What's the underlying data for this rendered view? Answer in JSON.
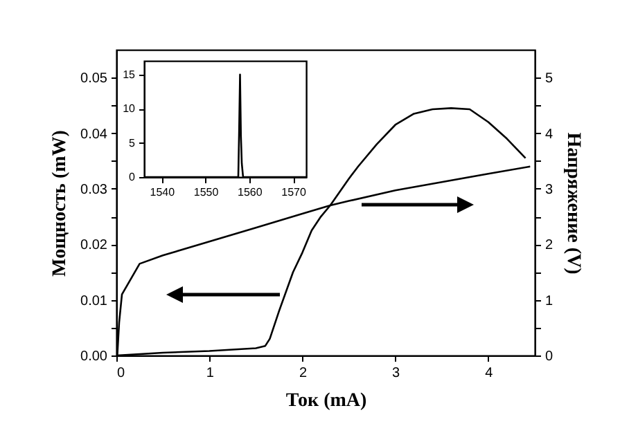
{
  "chart_data": [
    {
      "type": "line",
      "xlabel": "Ток (mA)",
      "ylabel": "Мощность (mW)",
      "y2label": "Напряжение (V)",
      "xlim": [
        0,
        4.5
      ],
      "ylim": [
        0,
        0.055
      ],
      "y2lim": [
        0,
        5.5
      ],
      "xticks": [
        0,
        1,
        2,
        3,
        4
      ],
      "yticks": [
        {
          "value": 0,
          "label": "0.00"
        },
        {
          "value": 0.005,
          "label": null
        },
        {
          "value": 0.01,
          "label": "0.01"
        },
        {
          "value": 0.015,
          "label": null
        },
        {
          "value": 0.02,
          "label": "0.02"
        },
        {
          "value": 0.025,
          "label": null
        },
        {
          "value": 0.03,
          "label": "0.03"
        },
        {
          "value": 0.035,
          "label": null
        },
        {
          "value": 0.04,
          "label": "0.04"
        },
        {
          "value": 0.045,
          "label": null
        },
        {
          "value": 0.05,
          "label": "0.05"
        }
      ],
      "y2ticks": [
        0,
        {
          "value": 0.5,
          "label": null
        },
        1,
        {
          "value": 1.5,
          "label": null
        },
        2,
        {
          "value": 2.5,
          "label": null
        },
        3,
        {
          "value": 3.5,
          "label": null
        },
        4,
        {
          "value": 4.5,
          "label": null
        },
        5
      ],
      "line_style": "solid",
      "series": [
        {
          "color": "#000000",
          "x": [
            0,
            0.5,
            1,
            1.5,
            1.6,
            1.65,
            1.75,
            1.9,
            2.0,
            2.1,
            2.2,
            2.3,
            2.5,
            2.6,
            2.8,
            3.0,
            3.2,
            3.4,
            3.6,
            3.8,
            4.0,
            4.2,
            4.4
          ],
          "values": [
            0,
            0.0005,
            0.0008,
            0.0013,
            0.0017,
            0.003,
            0.008,
            0.015,
            0.0185,
            0.0225,
            0.025,
            0.027,
            0.0318,
            0.034,
            0.038,
            0.0415,
            0.0435,
            0.0443,
            0.0445,
            0.0443,
            0.042,
            0.039,
            0.0355
          ]
        },
        {
          "color": "#000000",
          "axis": "y2",
          "x": [
            0.01,
            0.03,
            0.06,
            0.25,
            0.5,
            1,
            1.5,
            2,
            2.3,
            2.5,
            3,
            3.5,
            4,
            4.45
          ],
          "values": [
            0,
            0.6,
            1.1,
            1.65,
            1.8,
            2.05,
            2.3,
            2.55,
            2.7,
            2.78,
            2.97,
            3.12,
            3.27,
            3.4
          ]
        }
      ]
    },
    {
      "type": "line",
      "xlim": [
        1536,
        1573
      ],
      "ylim": [
        0,
        17
      ],
      "xticks": [
        1540,
        1550,
        1560,
        1570
      ],
      "yticks": [
        0,
        5,
        10,
        15
      ],
      "series": [
        {
          "color": "#000000",
          "x": [
            1536,
            1557.5,
            1557.7,
            1557.9,
            1558.1,
            1558.3,
            1558.6,
            1573
          ],
          "values": [
            0,
            0,
            7,
            15,
            6,
            2,
            0,
            0
          ]
        }
      ]
    }
  ]
}
